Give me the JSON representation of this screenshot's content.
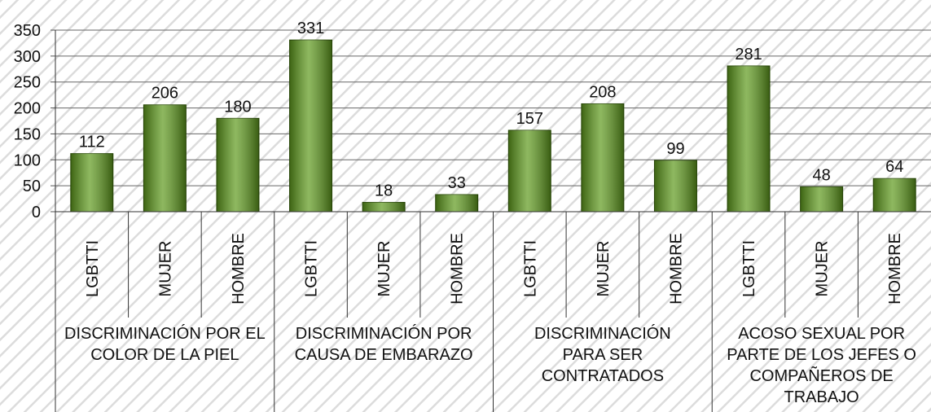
{
  "chart_data": {
    "type": "bar",
    "categories": [
      "LGBTTI",
      "MUJER",
      "HOMBRE",
      "LGBTTI",
      "MUJER",
      "HOMBRE",
      "LGBTTI",
      "MUJER",
      "HOMBRE",
      "LGBTTI",
      "MUJER",
      "HOMBRE"
    ],
    "groups": [
      "DISCRIMINACIÓN POR EL COLOR DE LA PIEL",
      "DISCRIMINACIÓN POR CAUSA DE EMBARAZO",
      "DISCRIMINACIÓN PARA SER CONTRATADOS",
      "ACOSO SEXUAL POR PARTE DE LOS JEFES O COMPAÑEROS DE TRABAJO"
    ],
    "values": [
      112,
      206,
      180,
      331,
      18,
      33,
      157,
      208,
      99,
      281,
      48,
      64
    ],
    "color": "#5e9a1c",
    "ylim": [
      0,
      350
    ],
    "yticks": [
      0,
      50,
      100,
      150,
      200,
      250,
      300,
      350
    ],
    "grid": true
  }
}
